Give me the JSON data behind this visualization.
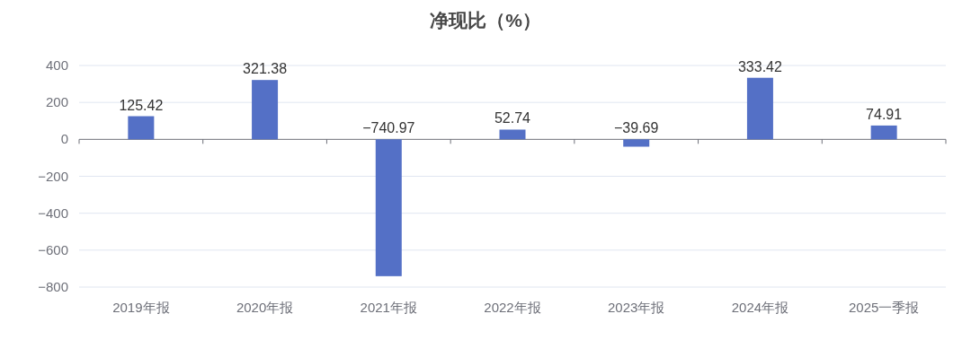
{
  "chart_data": {
    "type": "bar",
    "title": "净现比（%）",
    "categories": [
      "2019年报",
      "2020年报",
      "2021年报",
      "2022年报",
      "2023年报",
      "2024年报",
      "2025一季报"
    ],
    "values": [
      125.42,
      321.38,
      -740.97,
      52.74,
      -39.69,
      333.42,
      74.91
    ],
    "color": "#5470c6",
    "ylim": [
      -800,
      400
    ],
    "yticks": [
      -800,
      -600,
      -400,
      -200,
      0,
      200,
      400
    ],
    "grid": "y",
    "data_labels": true
  }
}
